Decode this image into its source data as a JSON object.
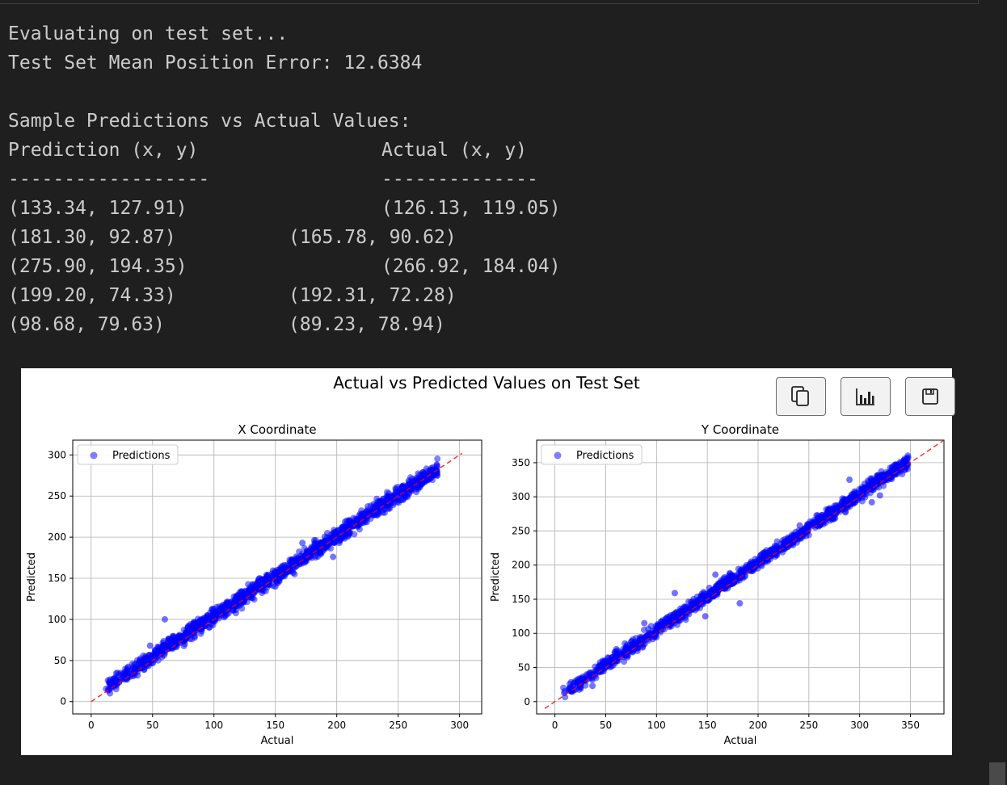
{
  "output": {
    "line1": "Evaluating on test set...",
    "line2": "Test Set Mean Position Error: 12.6384",
    "line3": "Sample Predictions vs Actual Values:",
    "header_pred": "Prediction (x, y)",
    "header_actual": "Actual (x, y)",
    "sep_pred": "------------------",
    "sep_actual": "--------------",
    "rows": [
      {
        "pred": "(133.34, 127.91)",
        "actual": "(126.13, 119.05)"
      },
      {
        "pred": "(181.30, 92.87)",
        "actual": "(165.78, 90.62)"
      },
      {
        "pred": "(275.90, 194.35)",
        "actual": "(266.92, 184.04)"
      },
      {
        "pred": "(199.20, 74.33)",
        "actual": "(192.31, 72.28)"
      },
      {
        "pred": "(98.68, 79.63)",
        "actual": "(89.23, 78.94)"
      }
    ]
  },
  "toolbar": {
    "icons": [
      "copy-icon",
      "chart-icon",
      "save-icon"
    ]
  },
  "figure": {
    "suptitle": "Actual vs Predicted Values on Test Set"
  },
  "colors": {
    "points": "#0000ff",
    "ideal_line": "#ff0000",
    "background": "#1f1f1f",
    "text": "#cccccc"
  },
  "chart_data": [
    {
      "type": "scatter",
      "title": "X Coordinate",
      "xlabel": "Actual",
      "ylabel": "Predicted",
      "xlim": [
        -15,
        318
      ],
      "ylim": [
        -15,
        318
      ],
      "xticks": [
        0,
        50,
        100,
        150,
        200,
        250,
        300
      ],
      "yticks": [
        0,
        50,
        100,
        150,
        200,
        250,
        300
      ],
      "grid": true,
      "legend": "upper-left",
      "series": [
        {
          "name": "Predictions",
          "trend": {
            "slope": 0.985,
            "intercept": 5,
            "x_range": [
              12,
              282
            ],
            "noise": 7
          },
          "x": [
            34,
            48,
            60,
            72,
            96,
            118,
            150,
            172,
            197,
            220,
            265
          ],
          "y": [
            31,
            68,
            100,
            81,
            90,
            128,
            140,
            193,
            176,
            227,
            270
          ]
        },
        {
          "name": "ideal",
          "x": [
            0,
            302
          ],
          "y": [
            0,
            302
          ]
        }
      ]
    },
    {
      "type": "scatter",
      "title": "Y Coordinate",
      "xlabel": "Actual",
      "ylabel": "Predicted",
      "xlim": [
        -18,
        383
      ],
      "ylim": [
        -18,
        383
      ],
      "xticks": [
        0,
        50,
        100,
        150,
        200,
        250,
        300,
        350
      ],
      "yticks": [
        0,
        50,
        100,
        150,
        200,
        250,
        300,
        350
      ],
      "grid": true,
      "legend": "upper-left",
      "series": [
        {
          "name": "Predictions",
          "trend": {
            "slope": 1.0,
            "intercept": 4,
            "x_range": [
              8,
              348
            ],
            "noise": 7
          },
          "x": [
            37,
            59,
            88,
            118,
            148,
            158,
            182,
            241,
            290,
            312,
            320
          ],
          "y": [
            23,
            73,
            115,
            159,
            125,
            186,
            144,
            258,
            325,
            292,
            302
          ]
        },
        {
          "name": "ideal",
          "x": [
            -10,
            382
          ],
          "y": [
            -10,
            382
          ]
        }
      ]
    }
  ]
}
